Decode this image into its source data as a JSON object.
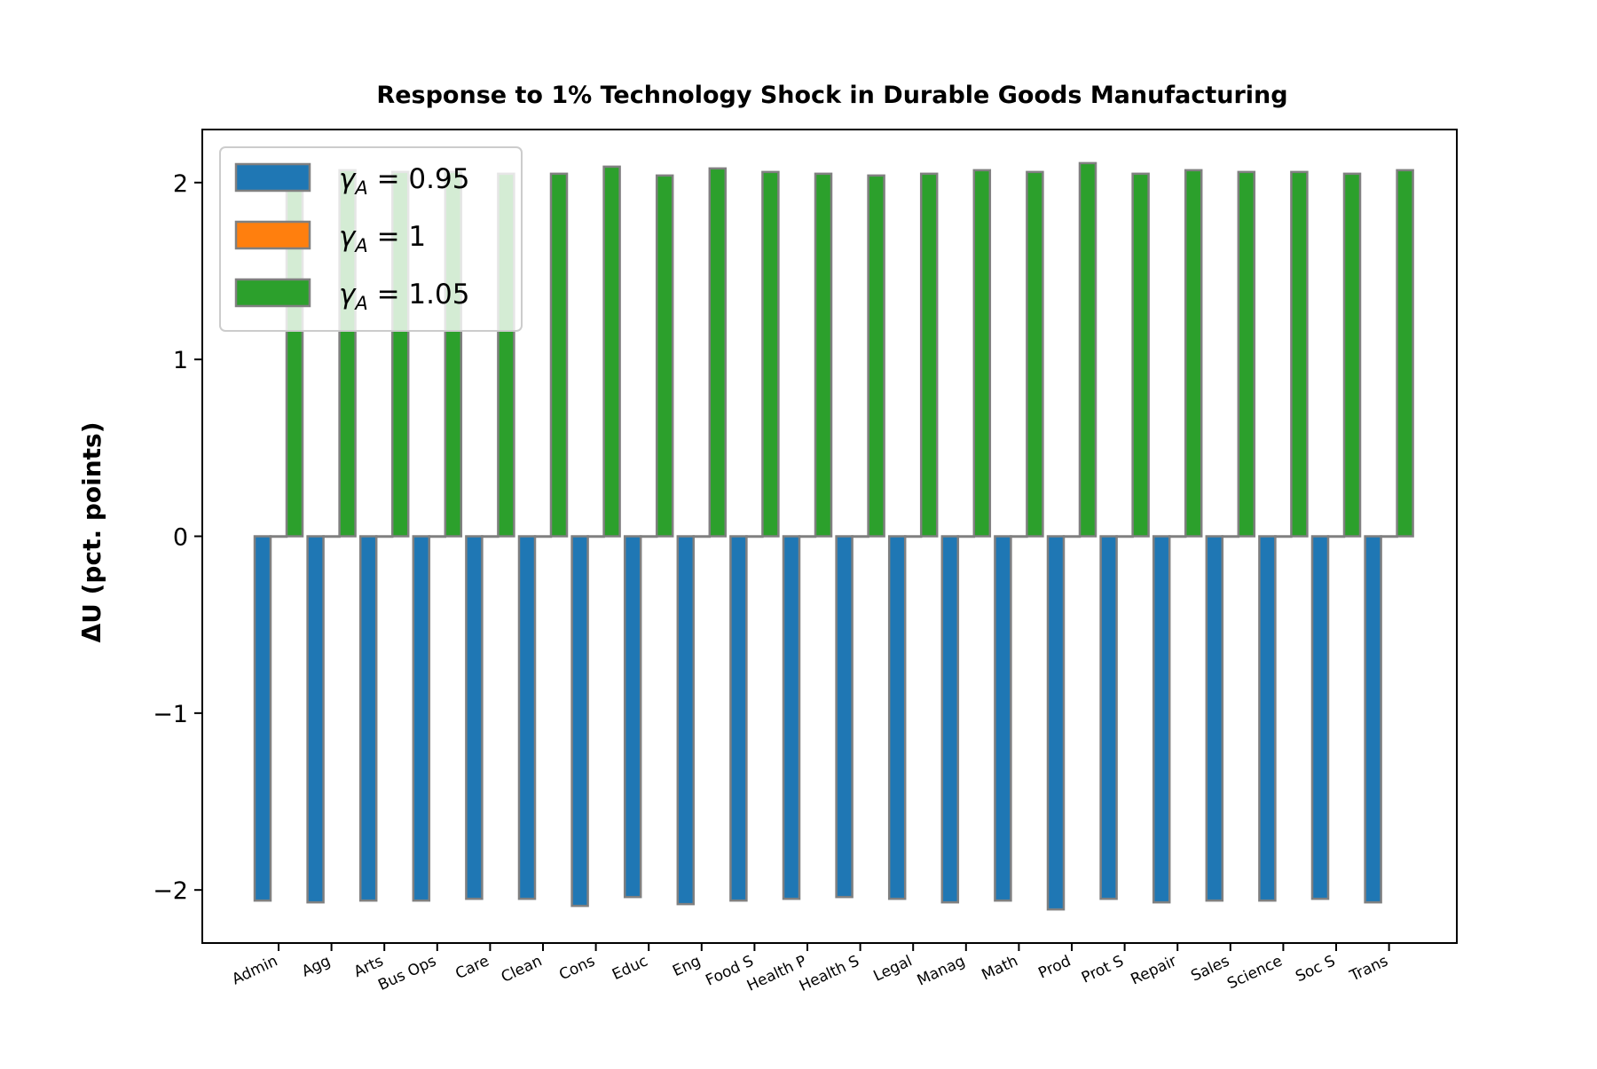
{
  "chart_data": {
    "type": "bar",
    "title": "Response to 1% Technology Shock in Durable Goods Manufacturing",
    "xlabel": "",
    "ylabel": "ΔU  (pct. points)",
    "ylim": [
      -2.3,
      2.3
    ],
    "yticks": [
      -2,
      -1,
      0,
      1,
      2
    ],
    "ytick_labels": [
      "−2",
      "−1",
      "0",
      "1",
      "2"
    ],
    "grid": false,
    "legend_position": "top-left",
    "categories": [
      "Admin",
      "Agg",
      "Arts",
      "Bus Ops",
      "Care",
      "Clean",
      "Cons",
      "Educ",
      "Eng",
      "Food S",
      "Health P",
      "Health S",
      "Legal",
      "Manag",
      "Math",
      "Prod",
      "Prot S",
      "Repair",
      "Sales",
      "Science",
      "Soc S",
      "Trans"
    ],
    "series": [
      {
        "name": "γA = 0.95",
        "name_main": "γ",
        "name_sub": "A",
        "name_value": " = 0.95",
        "color": "#1f77b4",
        "values": [
          -2.06,
          -2.07,
          -2.06,
          -2.06,
          -2.05,
          -2.05,
          -2.09,
          -2.04,
          -2.08,
          -2.06,
          -2.05,
          -2.04,
          -2.05,
          -2.07,
          -2.06,
          -2.11,
          -2.05,
          -2.07,
          -2.06,
          -2.06,
          -2.05,
          -2.07
        ]
      },
      {
        "name": "γA = 1",
        "name_main": "γ",
        "name_sub": "A",
        "name_value": " = 1",
        "color": "#ff7f0e",
        "values": [
          0,
          0,
          0,
          0,
          0,
          0,
          0,
          0,
          0,
          0,
          0,
          0,
          0,
          0,
          0,
          0,
          0,
          0,
          0,
          0,
          0,
          0
        ]
      },
      {
        "name": "γA = 1.05",
        "name_main": "γ",
        "name_sub": "A",
        "name_value": " = 1.05",
        "color": "#2ca02c",
        "values": [
          2.06,
          2.07,
          2.06,
          2.06,
          2.05,
          2.05,
          2.09,
          2.04,
          2.08,
          2.06,
          2.05,
          2.04,
          2.05,
          2.07,
          2.06,
          2.11,
          2.05,
          2.07,
          2.06,
          2.06,
          2.05,
          2.07
        ]
      }
    ]
  }
}
